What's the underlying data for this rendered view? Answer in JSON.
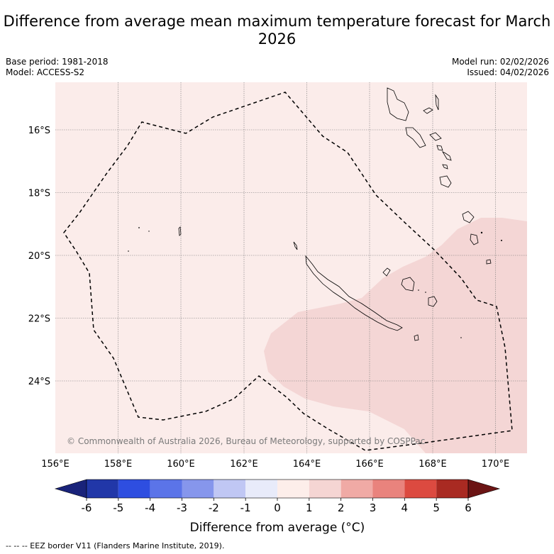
{
  "title": "Difference from average mean maximum temperature forecast for March 2026",
  "meta": {
    "base_period": "Base period: 1981-2018",
    "model": "Model: ACCESS-S2",
    "model_run": "Model run: 02/02/2026",
    "issued": "Issued: 04/02/2026"
  },
  "map": {
    "copyright": "© Commonwealth of Australia 2026, Bureau of Meteorology, supported by COSPPac",
    "lon_ticks": [
      "156°E",
      "158°E",
      "160°E",
      "162°E",
      "164°E",
      "166°E",
      "168°E",
      "170°E"
    ],
    "lat_ticks": [
      "16°S",
      "18°S",
      "20°S",
      "22°S",
      "24°S"
    ],
    "background_class": "0 to 1",
    "background_color": "#fbecea",
    "warm_zone_class": "1 to 2",
    "warm_zone_color": "#f4d6d5"
  },
  "colorbar": {
    "tick_labels": [
      "-6",
      "-5",
      "-4",
      "-3",
      "-2",
      "-1",
      "0",
      "1",
      "2",
      "3",
      "4",
      "5",
      "6"
    ],
    "low_extend_color": "#19237a",
    "high_extend_color": "#6b1414",
    "colors": [
      "#2137a8",
      "#2e4ee0",
      "#5b74e8",
      "#8696ec",
      "#c0c7f4",
      "#e8ebfa",
      "#fdeeea",
      "#f5d5d3",
      "#f0aaa5",
      "#e9837d",
      "#dc4a40",
      "#a92a22"
    ],
    "label": "Difference from average (°C)"
  },
  "footnote": "--  --  -- EEZ border V11 (Flanders Marine Institute, 2019)."
}
